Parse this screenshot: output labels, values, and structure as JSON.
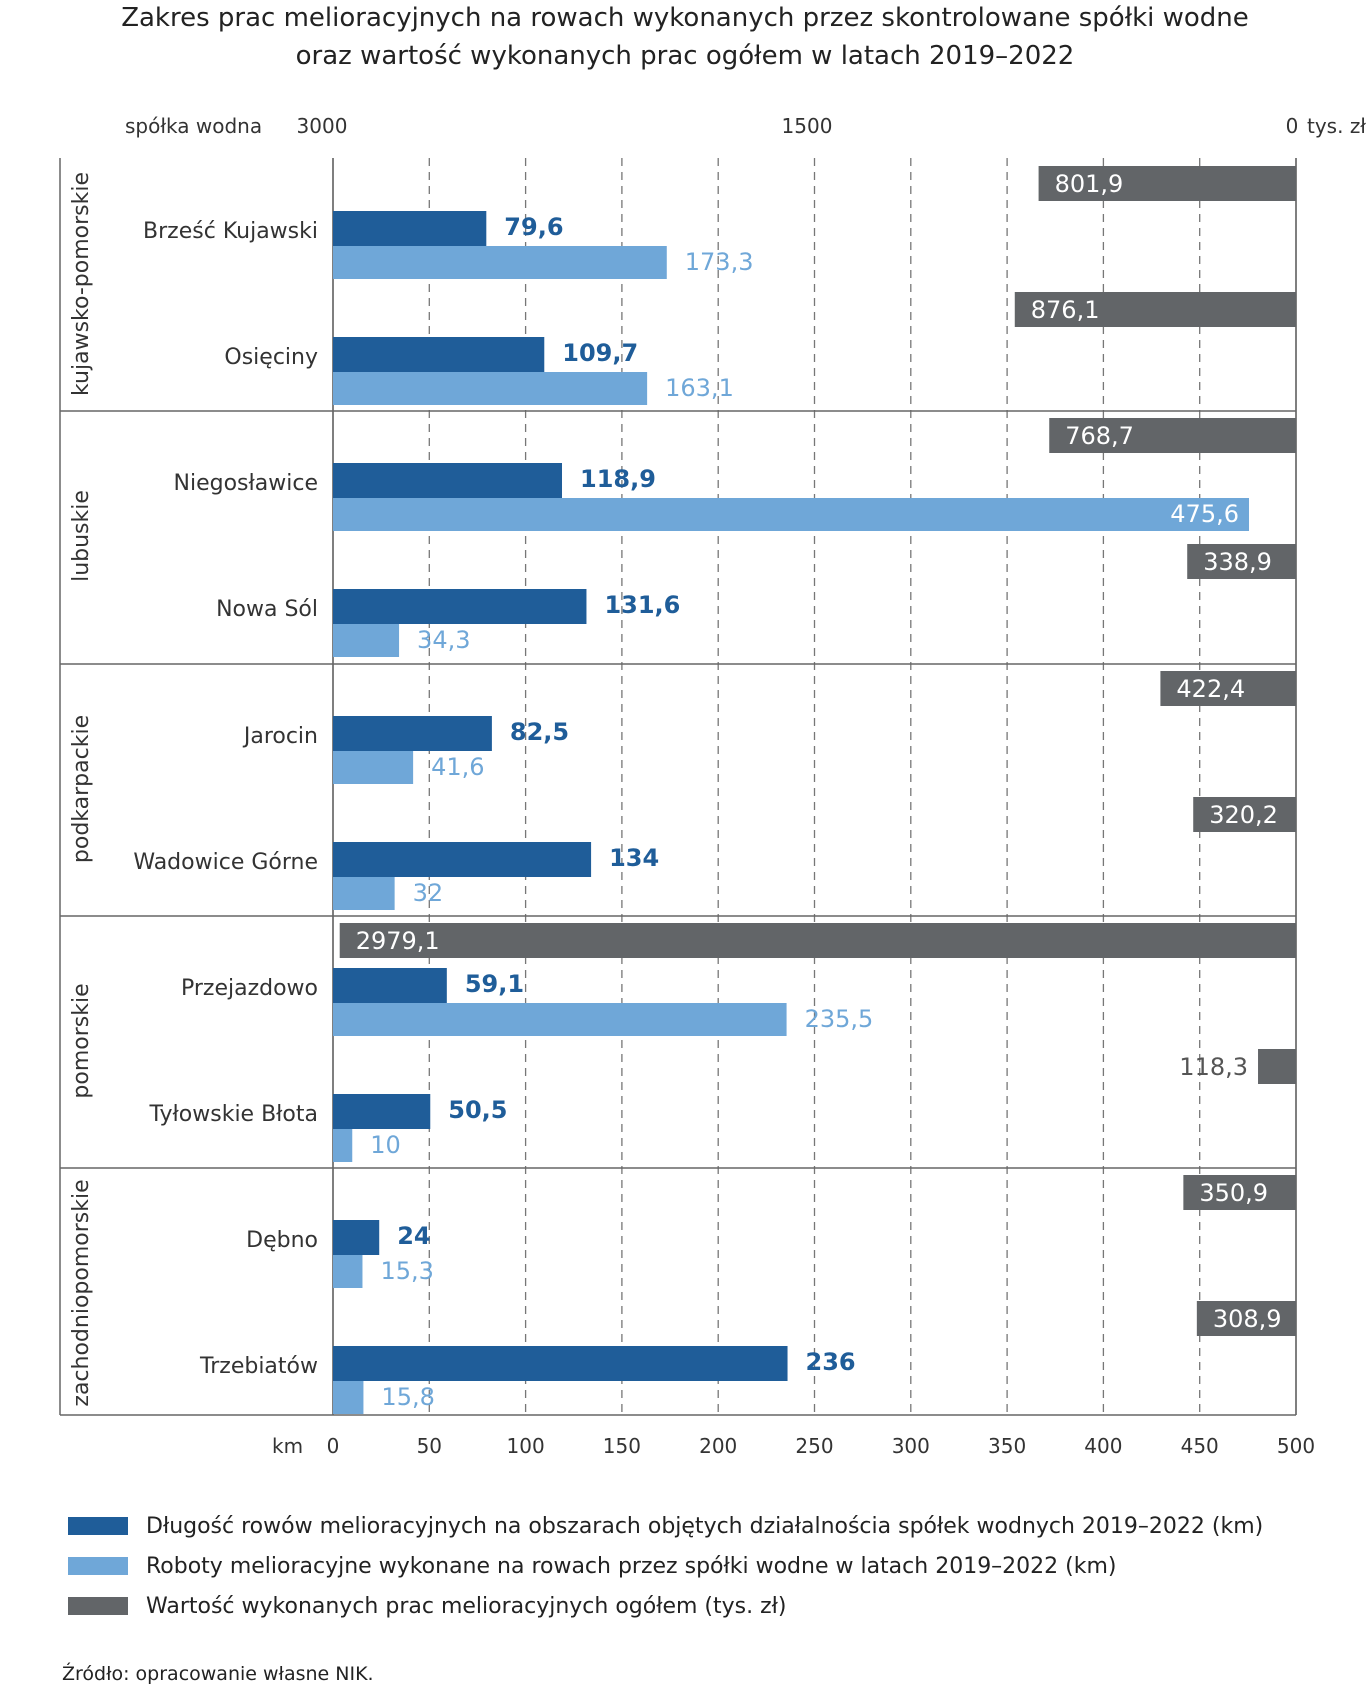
{
  "title_line1": "Zakres prac melioracyjnych na rowach wykonanych przez skontrolowane spółki wodne",
  "title_line2": "oraz wartość wykonanych prac ogółem w latach 2019–2022",
  "top_axis": {
    "header": "spółka wodna",
    "ticks": [
      "3000",
      "1500",
      "0"
    ],
    "unit": "tys. zł"
  },
  "bottom_axis": {
    "unit": "km",
    "ticks": [
      "0",
      "50",
      "100",
      "150",
      "200",
      "250",
      "300",
      "350",
      "400",
      "450",
      "500"
    ]
  },
  "legend": [
    {
      "label": "Długość rowów melioracyjnych na obszarach objętych działalnościa spółek  wodnych 2019–2022 (km)",
      "color": "#1f5d99"
    },
    {
      "label": "Roboty melioracyjne wykonane na rowach przez spółki wodne w latach 2019–2022 (km)",
      "color": "#6fa7d8"
    },
    {
      "label": "Wartość wykonanych prac melioracyjnych ogółem (tys. zł)",
      "color": "#626568"
    }
  ],
  "source": "Źródło: opracowanie własne NIK.",
  "chart_data": {
    "type": "bar",
    "orientation": "horizontal",
    "groups": [
      "kujawsko-pomorskie",
      "lubuskie",
      "podkarpackie",
      "pomorskie",
      "zachodniopomorskie"
    ],
    "categories": [
      "Brześć Kujawski",
      "Osięciny",
      "Niegosławice",
      "Nowa Sól",
      "Jarocin",
      "Wadowice Górne",
      "Przejazdowo",
      "Tyłowskie Błota",
      "Dębno",
      "Trzebiatów"
    ],
    "category_group": [
      0,
      0,
      1,
      1,
      2,
      2,
      3,
      3,
      4,
      4
    ],
    "series": [
      {
        "name": "Długość rowów melioracyjnych na obszarach objętych działalnościa spółek  wodnych 2019–2022 (km)",
        "axis": "km",
        "values": [
          79.6,
          109.7,
          118.9,
          131.6,
          82.5,
          134,
          59.1,
          50.5,
          24,
          236
        ],
        "labels": [
          "79,6",
          "109,7",
          "118,9",
          "131,6",
          "82,5",
          "134",
          "59,1",
          "50,5",
          "24",
          "236"
        ],
        "color": "#1f5d99"
      },
      {
        "name": "Roboty melioracyjne wykonane na rowach przez spółki wodne w latach 2019–2022 (km)",
        "axis": "km",
        "values": [
          173.3,
          163.1,
          475.6,
          34.3,
          41.6,
          32,
          235.5,
          10,
          15.3,
          15.8
        ],
        "labels": [
          "173,3",
          "163,1",
          "475,6",
          "34,3",
          "41,6",
          "32",
          "235,5",
          "10",
          "15,3",
          "15,8"
        ],
        "color": "#6fa7d8"
      },
      {
        "name": "Wartość wykonanych prac melioracyjnych ogółem (tys. zł)",
        "axis": "tys. zł",
        "reversed": true,
        "values": [
          801.9,
          876.1,
          768.7,
          338.9,
          422.4,
          320.2,
          2979.1,
          118.3,
          350.9,
          308.9
        ],
        "labels": [
          "801,9",
          "876,1",
          "768,7",
          "338,9",
          "422,4",
          "320,2",
          "2979,1",
          "118,3",
          "350,9",
          "308,9"
        ],
        "color": "#626568"
      }
    ],
    "xlim_km": [
      0,
      500
    ],
    "xlim_tys_zl": [
      3000,
      0
    ],
    "grid": true
  }
}
